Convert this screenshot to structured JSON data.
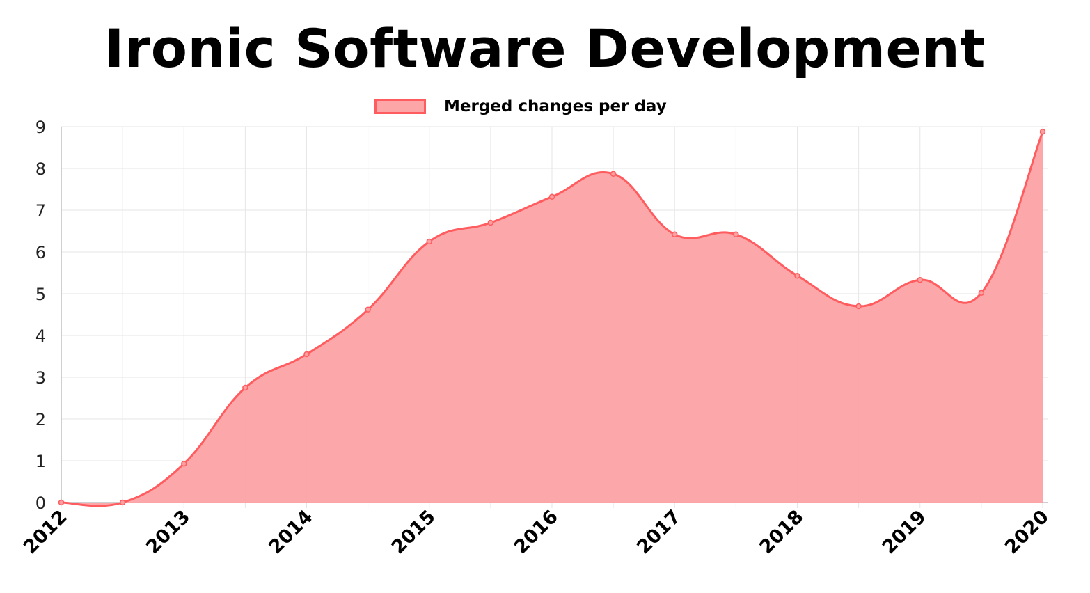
{
  "chart_data": {
    "type": "area",
    "title": "Ironic Software Development",
    "legend_position": "top-center",
    "grid": true,
    "series": [
      {
        "name": "Merged changes per day",
        "color": "#ff5c5f",
        "fill": "#fca3a5",
        "x": [
          "2012-01",
          "2012-07",
          "2013-01",
          "2013-07",
          "2014-01",
          "2014-07",
          "2015-01",
          "2015-07",
          "2016-01",
          "2016-07",
          "2017-01",
          "2017-07",
          "2018-01",
          "2018-07",
          "2019-01",
          "2019-07",
          "2020-01"
        ],
        "values": [
          0.0,
          0.0,
          0.93,
          2.75,
          3.55,
          4.62,
          6.25,
          6.7,
          7.32,
          7.87,
          6.42,
          6.42,
          5.43,
          4.7,
          5.33,
          5.02,
          8.88
        ]
      }
    ],
    "xticks": [
      "2012",
      "2013",
      "2014",
      "2015",
      "2016",
      "2017",
      "2018",
      "2019",
      "2020"
    ],
    "ylim": [
      0,
      9
    ],
    "yticks": [
      0,
      1,
      2,
      3,
      4,
      5,
      6,
      7,
      8,
      9
    ],
    "xlabel": "",
    "ylabel": ""
  }
}
